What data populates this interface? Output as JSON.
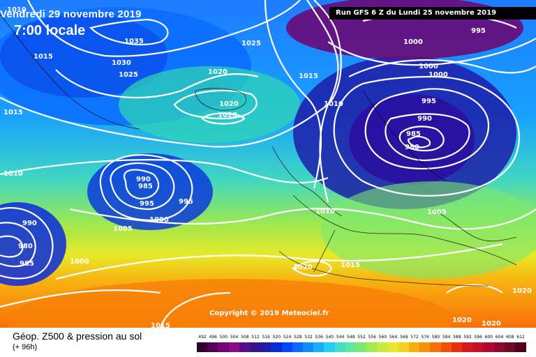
{
  "header": {
    "date_label": "Vendredi 29 novembre 2019",
    "time_label": "7:00 locale",
    "run_label": "Run GFS 6 Z du Lundi 25 novembre 2019"
  },
  "footer": {
    "title": "Géop. Z500 & pression au sol",
    "subtitle": "(+ 96h)"
  },
  "copyright": "Copyright © 2019 Meteociel.fr",
  "scale": {
    "values": [
      "492",
      "496",
      "500",
      "504",
      "508",
      "512",
      "516",
      "520",
      "524",
      "528",
      "532",
      "536",
      "540",
      "544",
      "548",
      "552",
      "556",
      "560",
      "564",
      "568",
      "572",
      "576",
      "580",
      "584",
      "588",
      "592",
      "596",
      "600",
      "604",
      "608",
      "612"
    ],
    "colors": [
      "#330033",
      "#550055",
      "#770077",
      "#8a0a8a",
      "#5a0d8a",
      "#3a118f",
      "#1e1ca8",
      "#0a2adc",
      "#0046ff",
      "#0a6aff",
      "#108cff",
      "#16b0ff",
      "#20d0f0",
      "#40e0c8",
      "#60e8a0",
      "#7ce870",
      "#a0ec50",
      "#c8ec38",
      "#e8e828",
      "#f8d020",
      "#f8b010",
      "#f89008",
      "#f87008",
      "#f05008",
      "#e83010",
      "#d81818",
      "#c81028",
      "#b00830",
      "#900830",
      "#700828",
      "#500018"
    ]
  },
  "isobars": {
    "labels": [
      "1010",
      "1015",
      "1035",
      "1030",
      "1025",
      "1025",
      "1020",
      "1015",
      "1010",
      "1020",
      "1020",
      "1015",
      "995",
      "1000",
      "1000",
      "1000",
      "995",
      "990",
      "985",
      "980",
      "990",
      "985",
      "995",
      "1000",
      "1010",
      "1005",
      "990",
      "980",
      "985",
      "995",
      "1000",
      "1005",
      "1010",
      "1020",
      "1015",
      "1020",
      "1020",
      "1020",
      "1015"
    ]
  },
  "legend_colors": {
    "low_center": "#2a1070",
    "purple_high": "#6a0a78"
  }
}
